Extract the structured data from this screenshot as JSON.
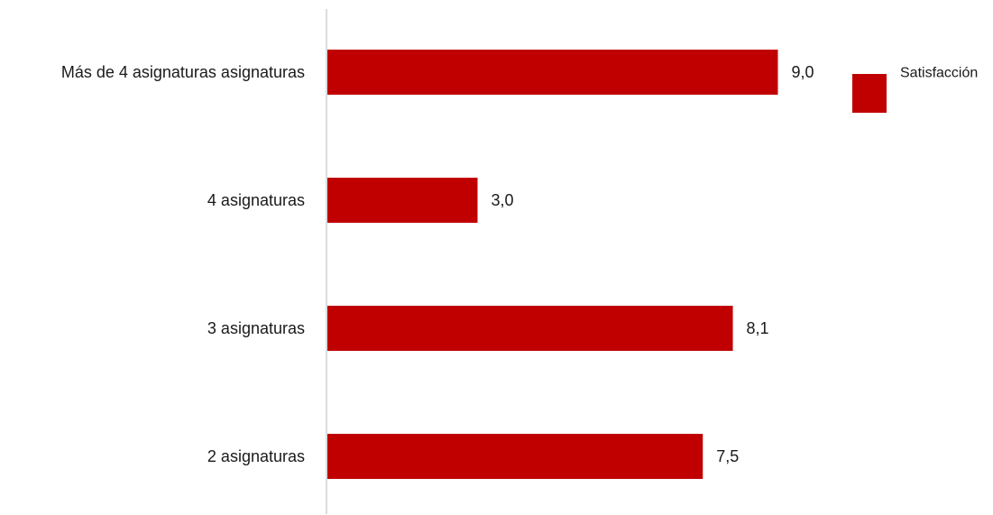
{
  "chart_data": {
    "type": "bar",
    "orientation": "horizontal",
    "categories": [
      "Más  de 4 asignaturas asignaturas",
      "4 asignaturas",
      "3 asignaturas",
      "2 asignaturas"
    ],
    "series": [
      {
        "name": "Satisfacción",
        "values": [
          9.0,
          3.0,
          8.1,
          7.5
        ],
        "value_labels": [
          "9,0",
          "3,0",
          "8,1",
          "7,5"
        ],
        "color": "#c00000"
      }
    ],
    "title": "",
    "xlabel": "",
    "ylabel": "",
    "xlim": [
      0,
      10
    ],
    "grid": false,
    "legend": {
      "position": "top-right",
      "entries": [
        "Satisfacción"
      ]
    }
  }
}
